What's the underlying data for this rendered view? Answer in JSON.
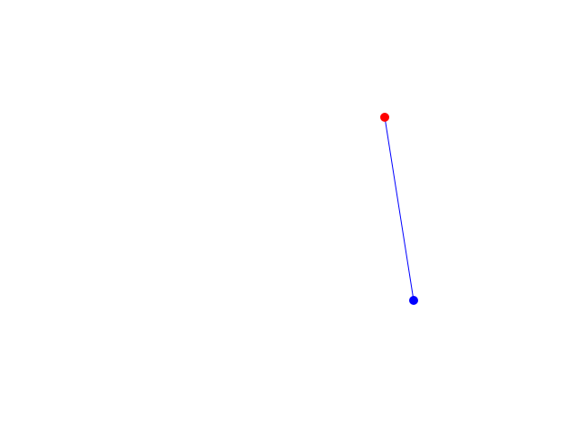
{
  "diagram": {
    "line_color": "#0000ff",
    "start_point_color": "#ff0000",
    "end_point_color": "#0000ff"
  }
}
